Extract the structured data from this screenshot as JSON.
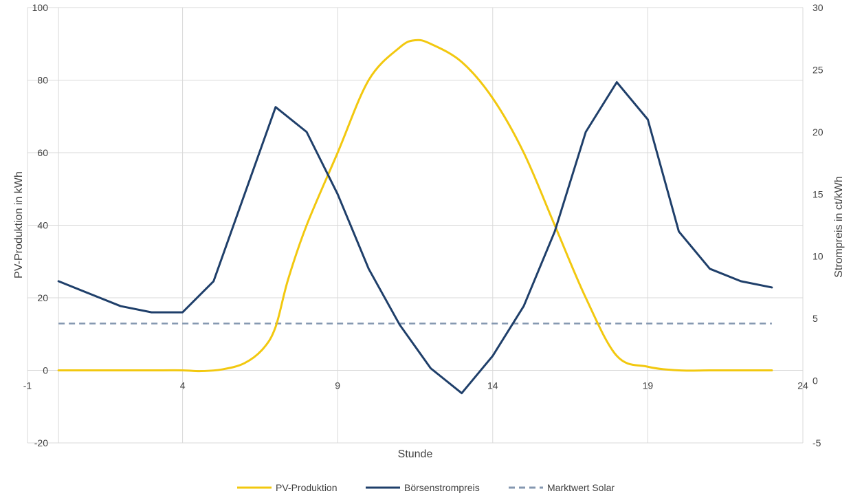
{
  "chart_data": {
    "type": "line",
    "title": "",
    "xlabel": "Stunde",
    "ylabel_left": "PV-Produktion in kWh",
    "ylabel_right": "Strompreis in ct/kWh",
    "xlim": [
      -1,
      24
    ],
    "ylim_left": [
      -20,
      100
    ],
    "ylim_right": [
      -5,
      30
    ],
    "x_ticks": [
      -1,
      4,
      9,
      14,
      19,
      24
    ],
    "y_left_ticks": [
      -20,
      0,
      20,
      40,
      60,
      80,
      100
    ],
    "y_right_ticks": [
      -5,
      0,
      5,
      10,
      15,
      20,
      25,
      30
    ],
    "grid": true,
    "legend_position": "bottom",
    "series": [
      {
        "name": "PV-Produktion",
        "axis": "left",
        "color": "#F2C80F",
        "style": "solid",
        "smooth": true,
        "x": [
          0,
          1,
          2,
          3,
          4,
          4.6,
          5.3,
          6,
          6.6,
          7,
          7.4,
          8,
          9,
          10,
          11,
          11.5,
          12,
          13,
          14,
          15,
          16,
          17,
          18,
          19,
          20,
          21,
          22,
          23
        ],
        "values": [
          0,
          0,
          0,
          0,
          0,
          -0.2,
          0.3,
          2,
          6,
          12,
          25,
          40,
          60,
          80,
          89,
          91,
          90,
          85,
          75,
          60,
          40,
          20,
          4,
          1,
          0,
          0,
          0,
          0
        ]
      },
      {
        "name": "Börsenstrompreis",
        "axis": "right",
        "color": "#1F3F6A",
        "style": "solid",
        "smooth": false,
        "x": [
          0,
          1,
          2,
          3,
          4,
          5,
          6,
          7,
          8,
          9,
          10,
          11,
          12,
          13,
          14,
          15,
          16,
          17,
          18,
          19,
          20,
          21,
          22,
          23
        ],
        "values": [
          8,
          7,
          6,
          5.5,
          5.5,
          8,
          15,
          22,
          20,
          15,
          9,
          4.5,
          1,
          -1,
          2,
          6,
          12,
          20,
          24,
          21,
          12,
          9,
          8,
          7.5
        ]
      },
      {
        "name": "Marktwert Solar",
        "axis": "right",
        "color": "#8497B0",
        "style": "dashed",
        "smooth": false,
        "x": [
          0,
          23
        ],
        "values": [
          4.6,
          4.6
        ]
      }
    ]
  }
}
